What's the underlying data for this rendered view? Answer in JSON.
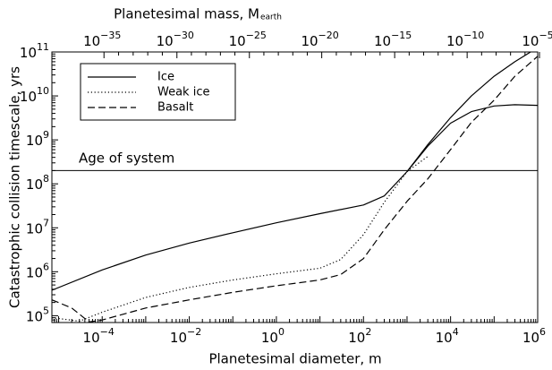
{
  "chart_data": {
    "type": "line",
    "xlabel": "Planetesimal diameter, m",
    "ylabel": "Catastrophic collision timescale, yrs",
    "x2label_main": "Planetesimal mass, M",
    "x2label_sub": "earth",
    "x_scale": "log",
    "y_scale": "log",
    "xlim": [
      7e-06,
      1000000.0
    ],
    "ylim": [
      70000,
      100000000000.0
    ],
    "x_ticks": [
      {
        "value": 0.0001,
        "base": "10",
        "exp": "−4"
      },
      {
        "value": 0.01,
        "base": "10",
        "exp": "−2"
      },
      {
        "value": 1,
        "base": "10",
        "exp": "0"
      },
      {
        "value": 100,
        "base": "10",
        "exp": "2"
      },
      {
        "value": 10000,
        "base": "10",
        "exp": "4"
      },
      {
        "value": 1000000,
        "base": "10",
        "exp": "6"
      }
    ],
    "y_ticks": [
      {
        "value": 100000,
        "base": "10",
        "exp": "5"
      },
      {
        "value": 1000000,
        "base": "10",
        "exp": "6"
      },
      {
        "value": 10000000,
        "base": "10",
        "exp": "7"
      },
      {
        "value": 100000000,
        "base": "10",
        "exp": "8"
      },
      {
        "value": 1000000000,
        "base": "10",
        "exp": "9"
      },
      {
        "value": 10000000000,
        "base": "10",
        "exp": "10"
      },
      {
        "value": 100000000000,
        "base": "10",
        "exp": "11"
      }
    ],
    "x2_ticks": [
      {
        "x": 0.00011,
        "base": "10",
        "exp": "−35"
      },
      {
        "x": 0.0052,
        "base": "10",
        "exp": "−30"
      },
      {
        "x": 0.24,
        "base": "10",
        "exp": "−25"
      },
      {
        "x": 11,
        "base": "10",
        "exp": "−20"
      },
      {
        "x": 520,
        "base": "10",
        "exp": "−15"
      },
      {
        "x": 24000,
        "base": "10",
        "exp": "−10"
      },
      {
        "x": 1100000,
        "base": "10",
        "exp": "−5"
      }
    ],
    "hline": {
      "y": 200000000,
      "label": "Age of system"
    },
    "legend": {
      "position": "top-left"
    },
    "series": [
      {
        "name": "Ice",
        "style": "solid",
        "x": [
          7e-06,
          0.0001,
          0.001,
          0.01,
          0.1,
          1,
          10,
          100,
          300,
          1000,
          3000,
          10000,
          30000,
          100000,
          300000,
          1000000
        ],
        "y": [
          380000,
          1100000,
          2400000,
          4500000,
          7700000,
          13000000,
          21000000,
          33000000,
          53000000,
          190000000,
          720000000,
          2400000000,
          4400000000,
          5900000000,
          6300000000,
          6100000000
        ]
      },
      {
        "name": "Ice",
        "style": "solid",
        "x": [
          1000,
          3000,
          10000,
          30000,
          100000,
          300000,
          800000,
          1000000
        ],
        "y": [
          190000000,
          780000000,
          3200000000,
          10000000000,
          28000000000,
          60000000000,
          110000000000,
          130000000000
        ]
      },
      {
        "name": "Weak ice",
        "style": "dotted",
        "x": [
          7e-06,
          3e-05,
          0.0001,
          0.001,
          0.01,
          0.1,
          1,
          10,
          30,
          100,
          300,
          1000,
          3000
        ],
        "y": [
          90000,
          75000,
          120000,
          260000,
          440000,
          650000,
          900000,
          1200000,
          1900000,
          7000000,
          38000000,
          190000000,
          420000000
        ]
      },
      {
        "name": "Basalt",
        "style": "dashed",
        "x": [
          7e-06,
          2e-05,
          5e-05,
          0.0001,
          0.001,
          0.01,
          0.1,
          1,
          10,
          30,
          100,
          300,
          1000,
          3000,
          10000,
          30000,
          100000,
          300000,
          1000000
        ],
        "y": [
          230000,
          150000,
          72000,
          80000,
          150000,
          230000,
          340000,
          480000,
          650000,
          860000,
          2000000,
          9000000,
          40000000,
          130000000,
          600000000,
          2500000000,
          8000000000,
          28000000000,
          80000000000
        ]
      }
    ]
  }
}
